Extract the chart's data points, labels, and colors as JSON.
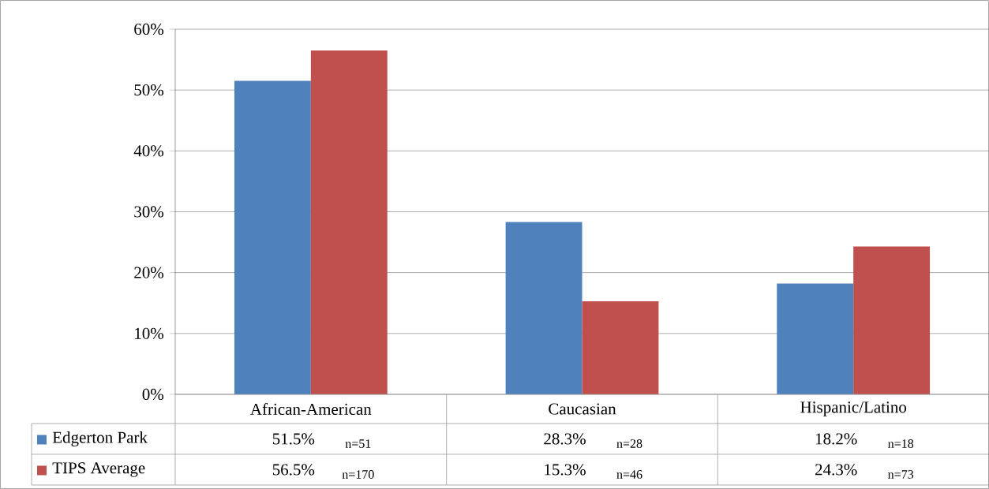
{
  "chart_data": {
    "type": "bar",
    "categories": [
      "African-American",
      "Caucasian",
      "Hispanic/Latino"
    ],
    "series": [
      {
        "name": "Edgerton Park",
        "color": "#4f81bd",
        "values": [
          51.5,
          28.3,
          18.2
        ],
        "value_labels": [
          "51.5%",
          "28.3%",
          "18.2%"
        ]
      },
      {
        "name": "TIPS Average",
        "color": "#c0504d",
        "values": [
          56.5,
          15.3,
          24.3
        ],
        "value_labels": [
          "56.5%",
          "15.3%",
          "24.3%"
        ]
      }
    ],
    "ylim": [
      0,
      60
    ],
    "yticks": [
      {
        "value": 0,
        "label": "0%"
      },
      {
        "value": 10,
        "label": "10%"
      },
      {
        "value": 20,
        "label": "20%"
      },
      {
        "value": 30,
        "label": "30%"
      },
      {
        "value": 40,
        "label": "40%"
      },
      {
        "value": 50,
        "label": "50%"
      },
      {
        "value": 60,
        "label": "60%"
      }
    ],
    "grid": "y",
    "legend": "bottom",
    "annotations": [
      "n=51",
      "n=28",
      "n=18",
      "n=170",
      "n=46",
      "n=73"
    ]
  }
}
